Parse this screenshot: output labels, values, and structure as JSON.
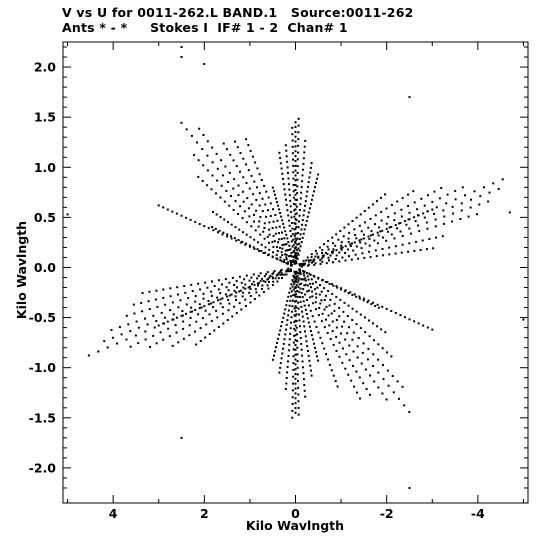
{
  "header": {
    "title": "V vs U for 0011-262.L BAND.1   Source:0011-262",
    "subtitle": "Ants * - *     Stokes I  IF# 1 - 2  Chan# 1"
  },
  "chart_data": {
    "type": "scatter",
    "title": "V vs U for 0011-262.L BAND.1   Source:0011-262",
    "subtitle": "Ants * - *     Stokes I  IF# 1 - 2  Chan# 1",
    "xlabel": "Kilo Wavlngth",
    "ylabel": "Kilo Wavlngth",
    "xlim": [
      5.1,
      -5.1
    ],
    "ylim": [
      -2.35,
      2.25
    ],
    "x_reversed": true,
    "grid": false,
    "xticks": [
      4,
      2,
      0,
      -2,
      -4
    ],
    "xtick_labels": [
      "4",
      "2",
      "0",
      "-2",
      "-4"
    ],
    "yticks": [
      2.0,
      1.5,
      1.0,
      0.5,
      0.0,
      -0.5,
      -1.0,
      -1.5,
      -2.0
    ],
    "ytick_labels": [
      "2.0",
      "1.5",
      "1.0",
      "0.5",
      "0.0",
      "-0.5",
      "-1.0",
      "-1.5",
      "-2.0"
    ],
    "marker_color": "#000000",
    "arms": [
      {
        "name": "north",
        "angle_deg": 90,
        "points_per_track": 22,
        "tracks": 8,
        "r_max": 1.45,
        "spread": 0.55
      },
      {
        "name": "south",
        "angle_deg": 270,
        "points_per_track": 22,
        "tracks": 8,
        "r_max": 1.45,
        "spread": 0.55
      },
      {
        "name": "east-up",
        "angle_deg": 30,
        "points_per_track": 22,
        "tracks": 9,
        "r_max": 2.6,
        "spread": 0.9
      },
      {
        "name": "west-down",
        "angle_deg": 210,
        "points_per_track": 22,
        "tracks": 9,
        "r_max": 2.6,
        "spread": 0.9
      },
      {
        "name": "east-down",
        "angle_deg": 150,
        "points_per_track": 22,
        "tracks": 10,
        "r_max": 5.0,
        "spread": 1.1
      },
      {
        "name": "west-up",
        "angle_deg": 330,
        "points_per_track": 22,
        "tracks": 10,
        "r_max": 5.0,
        "spread": 1.1
      }
    ],
    "sample_points": [
      {
        "x": 2.5,
        "y": 2.2
      },
      {
        "x": 2.5,
        "y": 2.1
      },
      {
        "x": 2.0,
        "y": 2.03
      },
      {
        "x": -2.5,
        "y": 1.7
      },
      {
        "x": -4.7,
        "y": 0.55
      },
      {
        "x": 5.0,
        "y": 0.53
      },
      {
        "x": -5.0,
        "y": -0.52
      },
      {
        "x": -2.5,
        "y": -2.2
      },
      {
        "x": 2.5,
        "y": -1.7
      }
    ]
  }
}
